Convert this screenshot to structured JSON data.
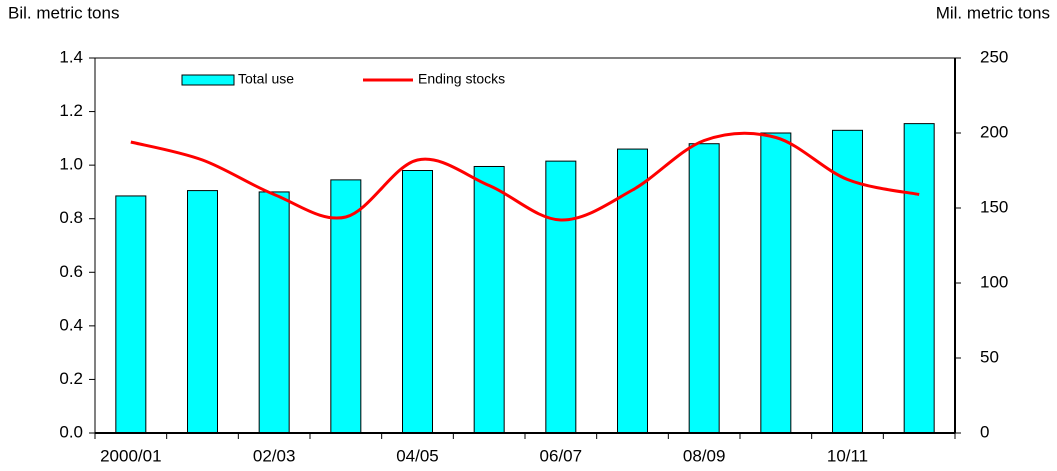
{
  "chart_data": {
    "type": "bar-line",
    "y_label": "Bil. metric tons",
    "y2_label": "Mil. metric tons",
    "categories": [
      "2000/01",
      null,
      "02/03",
      null,
      "04/05",
      null,
      "06/07",
      null,
      "08/09",
      null,
      "10/11",
      null
    ],
    "series": [
      {
        "name": "Total use",
        "type": "bar",
        "color": "#00ffff",
        "values": [
          0.885,
          0.905,
          0.9,
          0.945,
          0.98,
          0.995,
          1.015,
          1.06,
          1.08,
          1.12,
          1.13,
          1.155
        ]
      },
      {
        "name": "Ending stocks",
        "type": "line",
        "axis": "y2",
        "color": "#ff0000",
        "values": [
          194,
          182,
          159,
          144,
          182,
          165,
          142,
          162,
          195,
          197,
          169,
          159
        ]
      }
    ],
    "ylim": [
      0,
      1.4
    ],
    "yticks": [
      {
        "value": 0,
        "label": "0.0"
      },
      0.2,
      0.4,
      0.6,
      0.8,
      {
        "value": 1,
        "label": "1.0"
      },
      1.2,
      1.4
    ],
    "y2lim": [
      0,
      250
    ],
    "y2ticks": [
      0,
      50,
      100,
      150,
      200,
      250
    ],
    "legend": "top",
    "grid": false
  }
}
